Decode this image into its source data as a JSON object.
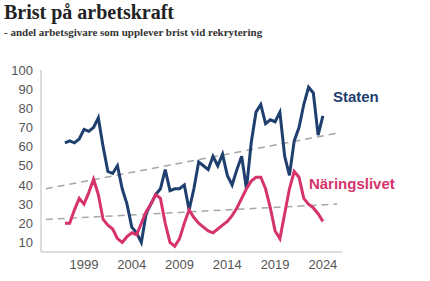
{
  "chart_data": {
    "type": "line",
    "title": "Brist på arbetskraft",
    "subtitle": "- andel arbetsgivare som upplever brist vid rekrytering",
    "x": [
      1997,
      1997.5,
      1998,
      1998.5,
      1999,
      1999.5,
      2000,
      2000.5,
      2001,
      2001.5,
      2002,
      2002.5,
      2003,
      2003.5,
      2004,
      2004.5,
      2005,
      2005.5,
      2006,
      2006.5,
      2007,
      2007.5,
      2008,
      2008.5,
      2009,
      2009.5,
      2010,
      2010.5,
      2011,
      2011.5,
      2012,
      2012.5,
      2013,
      2013.5,
      2014,
      2014.5,
      2015,
      2015.5,
      2016,
      2016.5,
      2017,
      2017.5,
      2018,
      2018.5,
      2019,
      2019.5,
      2020,
      2020.5,
      2021,
      2021.5,
      2022,
      2022.5,
      2023,
      2023.5,
      2024
    ],
    "series": [
      {
        "name": "Staten",
        "color": "#1f3f6e",
        "values": [
          62,
          63,
          62,
          64,
          69,
          68,
          70,
          75,
          60,
          47,
          46,
          50,
          38,
          30,
          18,
          15,
          10,
          25,
          30,
          35,
          38,
          48,
          37,
          38,
          38,
          40,
          27,
          38,
          52,
          50,
          48,
          55,
          50,
          56,
          45,
          40,
          48,
          55,
          38,
          62,
          78,
          82,
          72,
          74,
          73,
          78,
          55,
          45,
          63,
          70,
          82,
          91,
          88,
          66,
          76
        ],
        "trend": {
          "x": [
            1995,
            2025.5
          ],
          "values": [
            38,
            67
          ],
          "color": "#a6a6a6",
          "line_style": "dashed"
        }
      },
      {
        "name": "Näringslivet",
        "color": "#d6336c",
        "values": [
          20,
          20,
          27,
          33,
          30,
          36,
          43,
          35,
          22,
          19,
          17,
          12,
          10,
          13,
          15,
          14,
          20,
          26,
          30,
          35,
          33,
          20,
          10,
          8,
          12,
          20,
          27,
          23,
          20,
          18,
          16,
          15,
          17,
          19,
          21,
          24,
          28,
          33,
          38,
          42,
          44,
          44,
          38,
          28,
          16,
          12,
          25,
          38,
          47,
          44,
          33,
          30,
          28,
          25,
          21
        ],
        "trend": {
          "x": [
            1995,
            2025.5
          ],
          "values": [
            22,
            30
          ],
          "color": "#a6a6a6",
          "line_style": "dashed"
        }
      }
    ],
    "xlim": [
      1994.5,
      2026
    ],
    "xticks": [
      1999,
      2004,
      2009,
      2014,
      2019,
      2024
    ],
    "ylim": [
      5,
      100
    ],
    "yticks": [
      10,
      20,
      30,
      40,
      50,
      60,
      70,
      80,
      90,
      100
    ],
    "grid": false
  }
}
